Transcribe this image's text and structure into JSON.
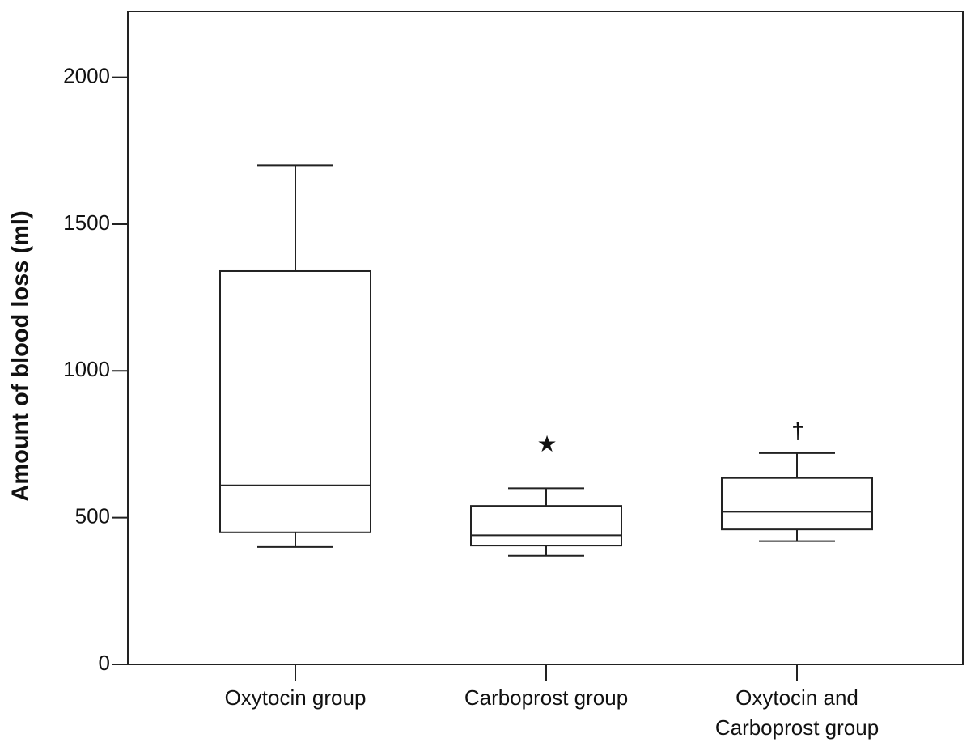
{
  "chart_data": {
    "type": "box",
    "y_label": "Amount of blood loss (ml)",
    "categories": [
      [
        "Oxytocin group"
      ],
      [
        "Carboprost group"
      ],
      [
        "Oxytocin and",
        "Carboprost group"
      ]
    ],
    "boxes": [
      {
        "min": 400,
        "q1": 450,
        "median": 610,
        "q3": 1340,
        "max": 1700,
        "outliers": []
      },
      {
        "min": 370,
        "q1": 405,
        "median": 440,
        "q3": 540,
        "max": 600,
        "outliers": [
          {
            "value": 745,
            "label": "★"
          }
        ]
      },
      {
        "min": 420,
        "q1": 460,
        "median": 520,
        "q3": 635,
        "max": 720,
        "outliers": [
          {
            "value": 789,
            "label": "†"
          }
        ]
      }
    ],
    "color": "#222222",
    "ylim": [
      0,
      2225
    ],
    "yticks": [
      0,
      500,
      1000,
      1500,
      2000
    ],
    "grid": false
  }
}
